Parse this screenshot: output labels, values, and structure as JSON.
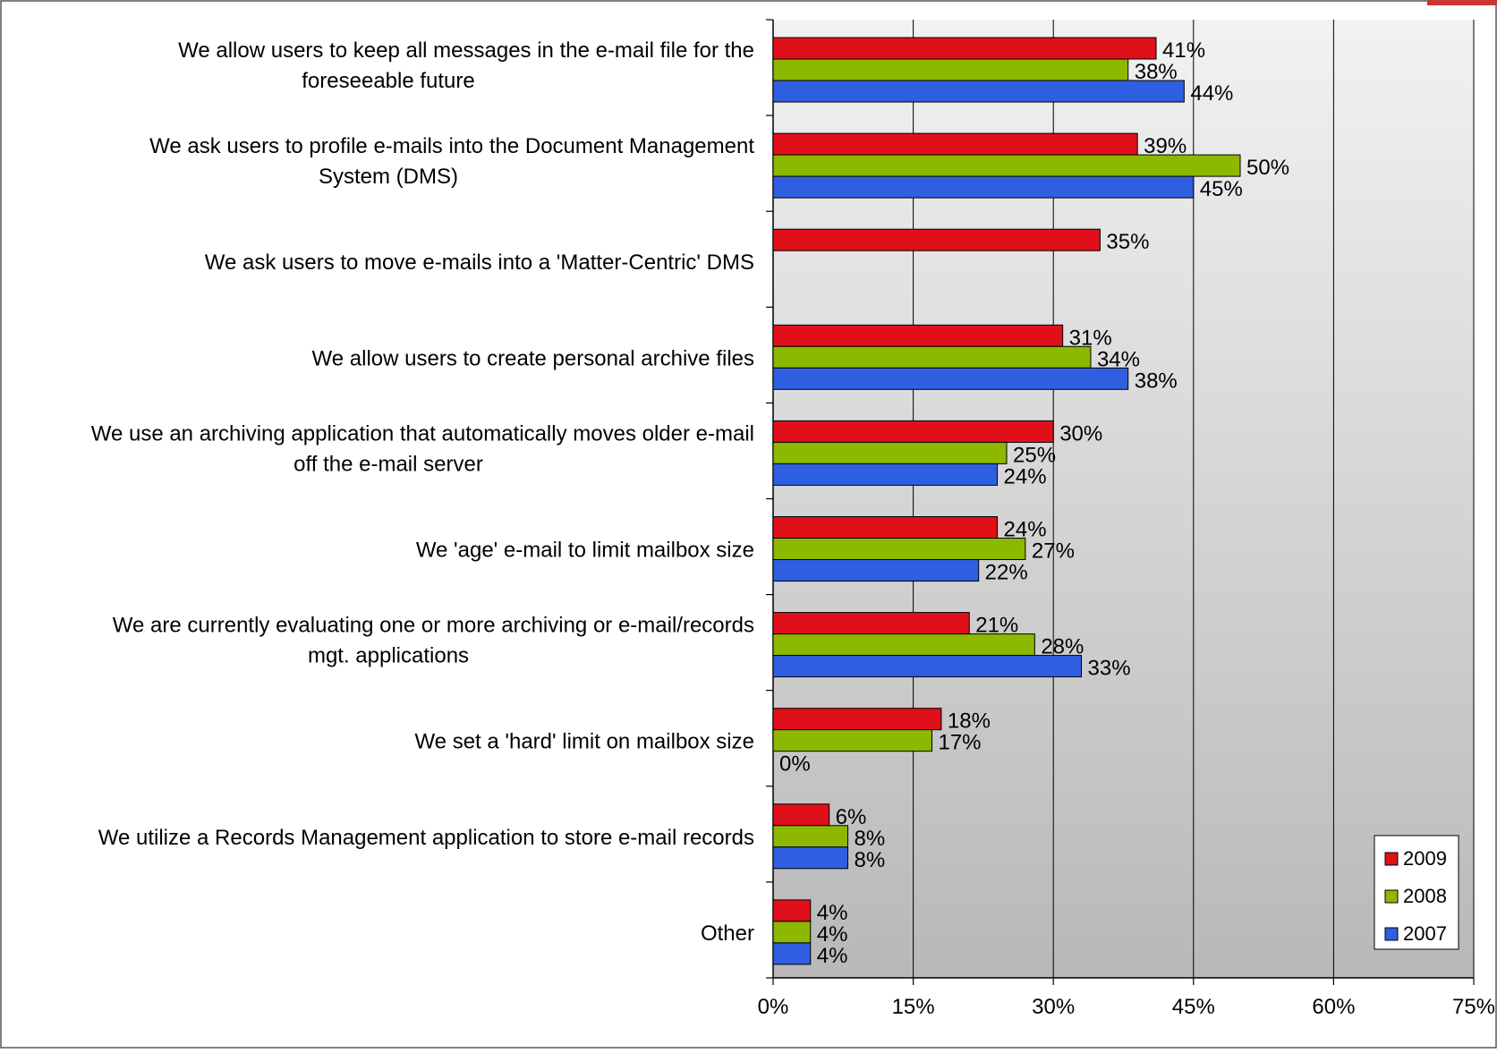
{
  "chart_data": {
    "type": "bar",
    "orientation": "horizontal",
    "categories": [
      [
        "We allow users to keep all messages in the e-mail file for the",
        "foreseeable future"
      ],
      [
        "We ask users to profile e-mails into the Document Management",
        "System (DMS)"
      ],
      [
        "We ask users to move e-mails into a 'Matter-Centric' DMS"
      ],
      [
        "We allow users to create personal archive files"
      ],
      [
        "We use an archiving application that automatically moves older e-mail",
        "off the e-mail server"
      ],
      [
        "We 'age' e-mail to limit mailbox size"
      ],
      [
        "We are currently evaluating one or more archiving or e-mail/records",
        "mgt. applications"
      ],
      [
        "We set a 'hard' limit on mailbox size"
      ],
      [
        "We utilize a Records Management application to store e-mail records"
      ],
      [
        "Other"
      ]
    ],
    "series": [
      {
        "name": "2009",
        "color": "#e0101a",
        "values": [
          41,
          39,
          35,
          31,
          30,
          24,
          21,
          18,
          6,
          4
        ],
        "labels": [
          "41%",
          "39%",
          "35%",
          "31%",
          "30%",
          "24%",
          "21%",
          "18%",
          "6%",
          "4%"
        ]
      },
      {
        "name": "2008",
        "color": "#8cb800",
        "values": [
          38,
          50,
          null,
          34,
          25,
          27,
          28,
          17,
          8,
          4
        ],
        "labels": [
          "38%",
          "50%",
          null,
          "34%",
          "25%",
          "27%",
          "28%",
          "17%",
          "8%",
          "4%"
        ]
      },
      {
        "name": "2007",
        "color": "#2f5fe0",
        "values": [
          44,
          45,
          null,
          38,
          24,
          22,
          33,
          0,
          8,
          4
        ],
        "labels": [
          "44%",
          "45%",
          null,
          "38%",
          "24%",
          "22%",
          "33%",
          "0%",
          "8%",
          "4%"
        ]
      }
    ],
    "xlim": [
      0,
      75
    ],
    "xticks": [
      0,
      15,
      30,
      45,
      60,
      75
    ],
    "xtick_labels": [
      "0%",
      "15%",
      "30%",
      "45%",
      "60%",
      "75%"
    ],
    "grid": "vertical",
    "legend_position": "bottom-right",
    "title": "",
    "xlabel": "",
    "ylabel": ""
  }
}
